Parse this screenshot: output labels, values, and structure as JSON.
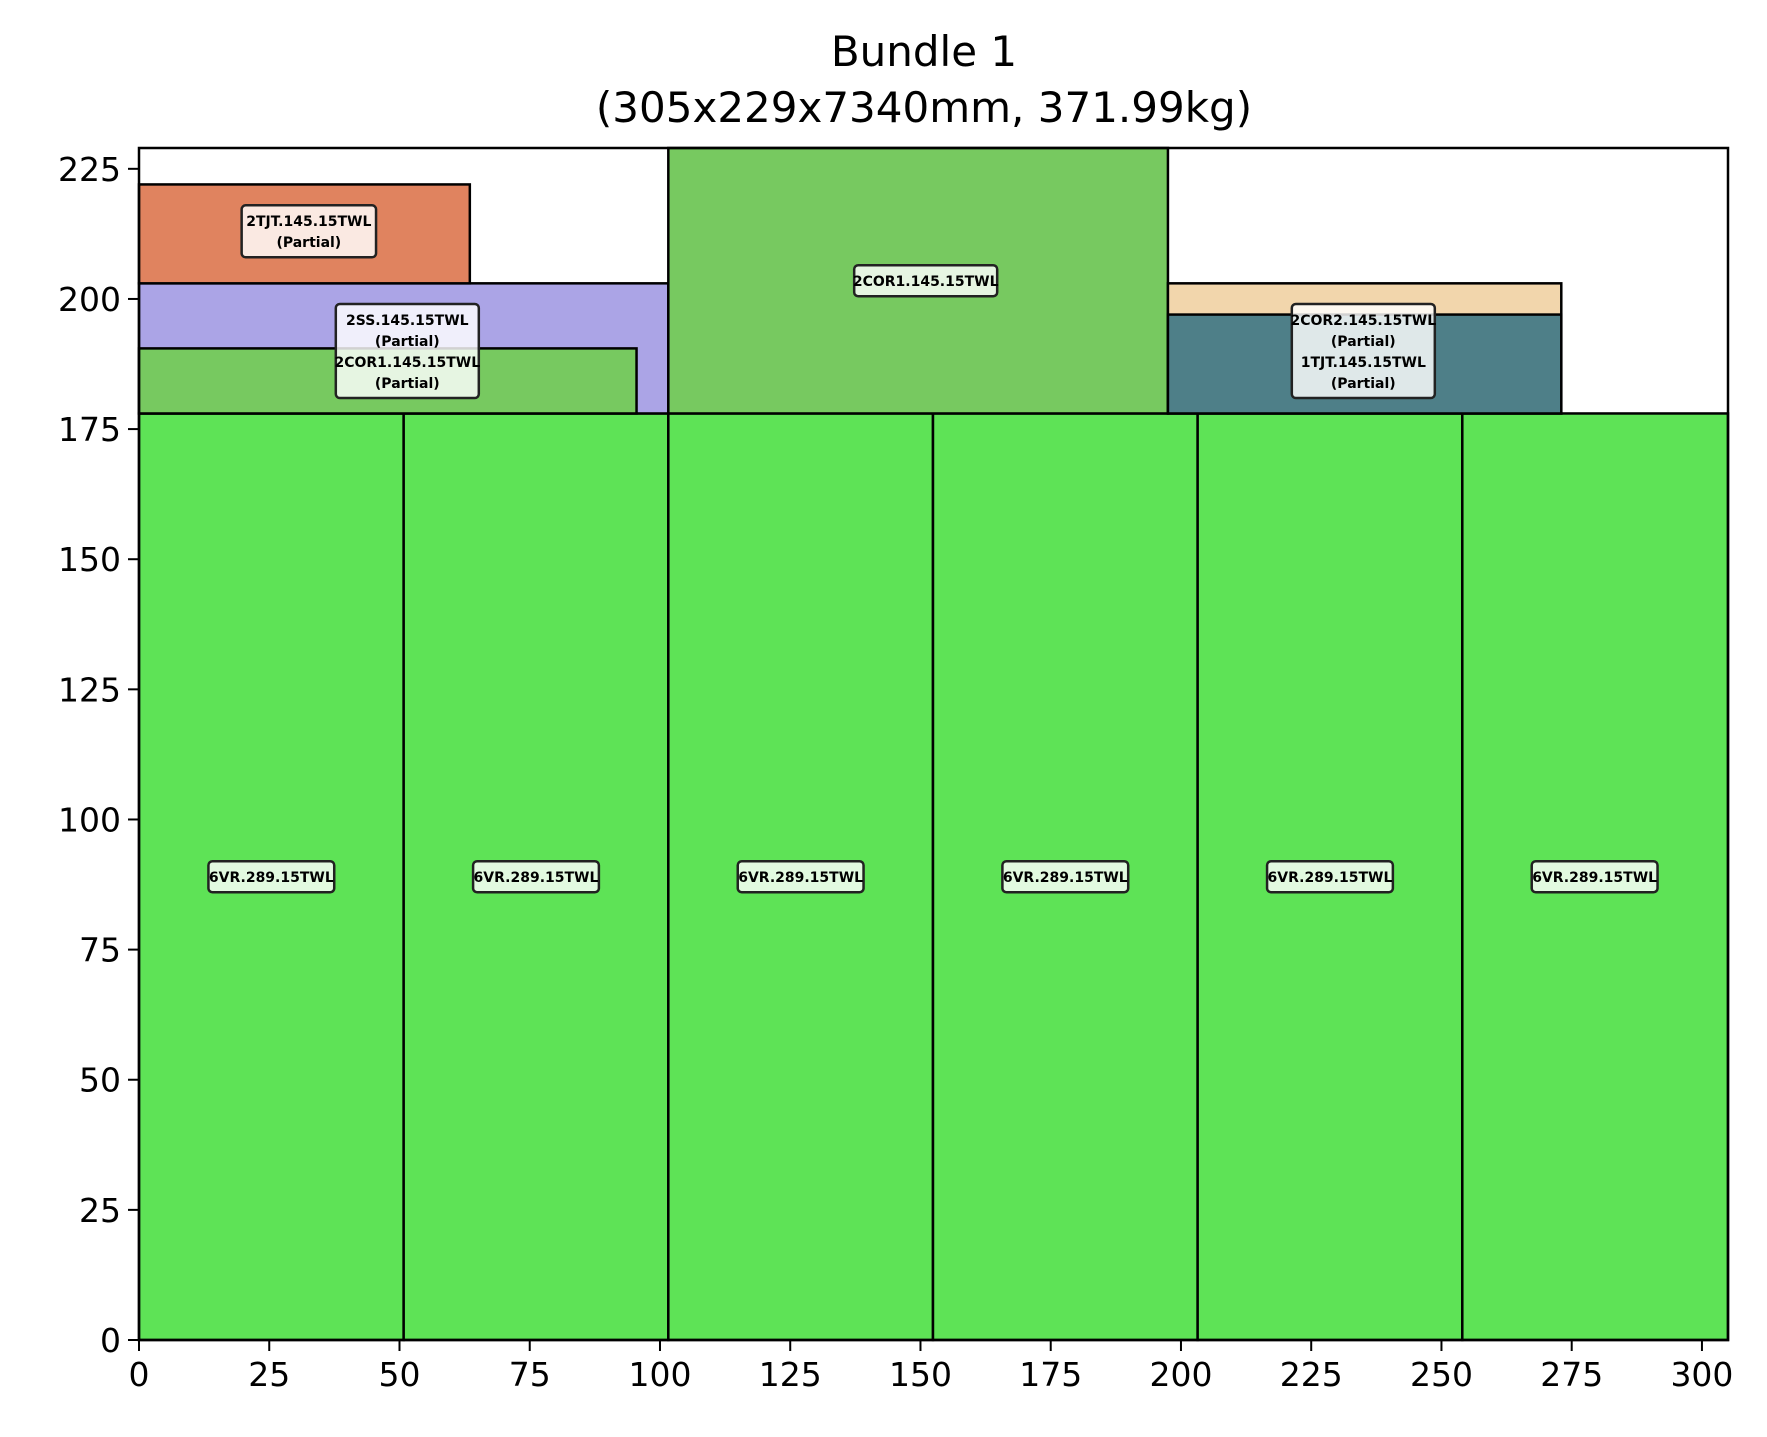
{
  "chart_data": {
    "type": "bar",
    "title_line1": "Bundle 1",
    "title_line2": "(305x229x7340mm, 371.99kg)",
    "xlabel": "",
    "ylabel": "",
    "xlim": [
      0,
      305
    ],
    "ylim": [
      0,
      229
    ],
    "xticks": [
      0,
      25,
      50,
      75,
      100,
      125,
      150,
      175,
      200,
      225,
      250,
      275,
      300
    ],
    "yticks": [
      0,
      25,
      50,
      75,
      100,
      125,
      150,
      175,
      200,
      225
    ],
    "grid": false,
    "rects": [
      {
        "x0": 0,
        "x1": 50.8,
        "y0": 0,
        "y1": 178,
        "color": "#5ee356"
      },
      {
        "x0": 50.8,
        "x1": 101.6,
        "y0": 0,
        "y1": 178,
        "color": "#5ee356"
      },
      {
        "x0": 101.6,
        "x1": 152.4,
        "y0": 0,
        "y1": 178,
        "color": "#5ee356"
      },
      {
        "x0": 152.4,
        "x1": 203.2,
        "y0": 0,
        "y1": 178,
        "color": "#5ee356"
      },
      {
        "x0": 203.2,
        "x1": 254,
        "y0": 0,
        "y1": 178,
        "color": "#5ee356"
      },
      {
        "x0": 254,
        "x1": 305,
        "y0": 0,
        "y1": 178,
        "color": "#5ee356"
      },
      {
        "x0": 0,
        "x1": 101.6,
        "y0": 178,
        "y1": 203,
        "color": "#aba4e6"
      },
      {
        "x0": 0,
        "x1": 95.5,
        "y0": 178,
        "y1": 190.5,
        "color": "#77c960"
      },
      {
        "x0": 0,
        "x1": 63.5,
        "y0": 203,
        "y1": 222,
        "color": "#e0835f"
      },
      {
        "x0": 101.6,
        "x1": 197.5,
        "y0": 178,
        "y1": 229,
        "color": "#77c960"
      },
      {
        "x0": 197.5,
        "x1": 273,
        "y0": 178,
        "y1": 203,
        "color": "#f2d6ac"
      },
      {
        "x0": 197.5,
        "x1": 273,
        "y0": 178,
        "y1": 197,
        "color": "#4e7f88"
      }
    ],
    "labels": [
      {
        "x": 32.6,
        "y": 213,
        "lines": [
          "2TJT.145.15TWL",
          "(Partial)"
        ]
      },
      {
        "x": 51.5,
        "y": 190,
        "lines": [
          "2SS.145.15TWL",
          "(Partial)",
          "2COR1.145.15TWL",
          "(Partial)"
        ]
      },
      {
        "x": 151,
        "y": 203.5,
        "lines": [
          "2COR1.145.15TWL"
        ]
      },
      {
        "x": 235,
        "y": 190,
        "lines": [
          "2COR2.145.15TWL",
          "(Partial)",
          "1TJT.145.15TWL",
          "(Partial)"
        ]
      },
      {
        "x": 25.4,
        "y": 89,
        "lines": [
          "6VR.289.15TWL"
        ]
      },
      {
        "x": 76.2,
        "y": 89,
        "lines": [
          "6VR.289.15TWL"
        ]
      },
      {
        "x": 127,
        "y": 89,
        "lines": [
          "6VR.289.15TWL"
        ]
      },
      {
        "x": 177.8,
        "y": 89,
        "lines": [
          "6VR.289.15TWL"
        ]
      },
      {
        "x": 228.6,
        "y": 89,
        "lines": [
          "6VR.289.15TWL"
        ]
      },
      {
        "x": 279.4,
        "y": 89,
        "lines": [
          "6VR.289.15TWL"
        ]
      }
    ]
  }
}
